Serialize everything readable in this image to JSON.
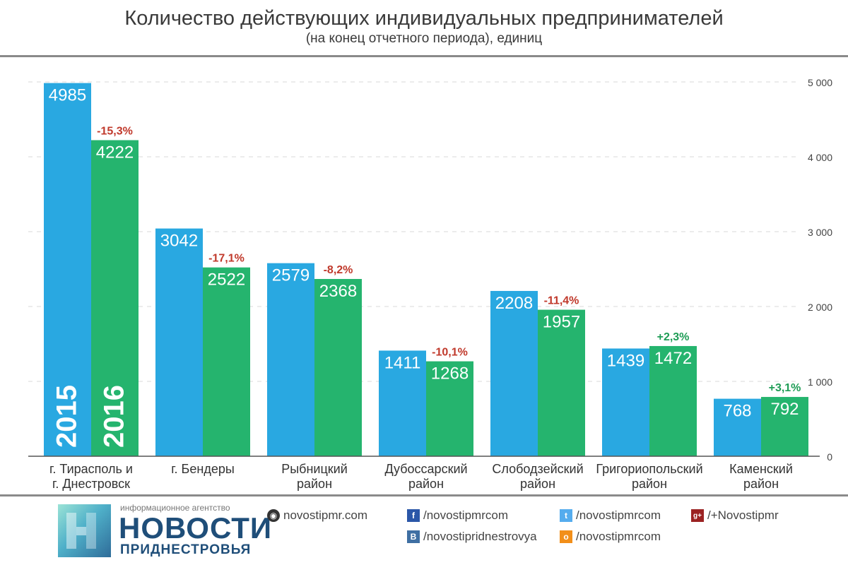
{
  "header": {
    "title": "Количество действующих индивидуальных предпринимателей",
    "subtitle": "(на конец отчетного периода), единиц"
  },
  "chart_data": {
    "type": "bar",
    "categories": [
      [
        "г. Тирасполь и",
        "г. Днестровск"
      ],
      [
        "г. Бендеры"
      ],
      [
        "Рыбницкий",
        "район"
      ],
      [
        "Дубоссарский",
        "район"
      ],
      [
        "Слободзейский",
        "район"
      ],
      [
        "Григориопольский",
        "район"
      ],
      [
        "Каменский",
        "район"
      ]
    ],
    "series": [
      {
        "name": "2015",
        "color": "#29a8e1",
        "values": [
          4985,
          3042,
          2579,
          1411,
          2208,
          1439,
          768
        ]
      },
      {
        "name": "2016",
        "color": "#25b46e",
        "values": [
          4222,
          2522,
          2368,
          1268,
          1957,
          1472,
          792
        ]
      }
    ],
    "changes": [
      "-15,3%",
      "-17,1%",
      "-8,2%",
      "-10,1%",
      "-11,4%",
      "+2,3%",
      "+3,1%"
    ],
    "change_colors": {
      "negative": "#c0392b",
      "positive": "#1e9c55"
    },
    "ylim": [
      0,
      5000
    ],
    "yticks": [
      0,
      1000,
      2000,
      3000,
      4000,
      5000
    ],
    "ytick_labels": [
      "0",
      "1 000",
      "2 000",
      "3 000",
      "4 000",
      "5 000"
    ],
    "grid": true
  },
  "footer": {
    "agency_small": "информационное агентство",
    "agency_name": "НОВОСТИ",
    "agency_sub": "ПРИДНЕСТРОВЬЯ",
    "links": {
      "site": "novostipmr.com",
      "facebook": "/novostipmrcom",
      "vk": "/novostipridnestrovya",
      "twitter": "/novostipmrcom",
      "odnoklassniki": "/novostipmrcom",
      "googleplus": "/+Novostipmr"
    },
    "icons": {
      "site": "globe-icon",
      "facebook": "facebook-icon",
      "vk": "vk-icon",
      "twitter": "twitter-icon",
      "odnoklassniki": "odnoklassniki-icon",
      "googleplus": "googleplus-icon"
    }
  }
}
